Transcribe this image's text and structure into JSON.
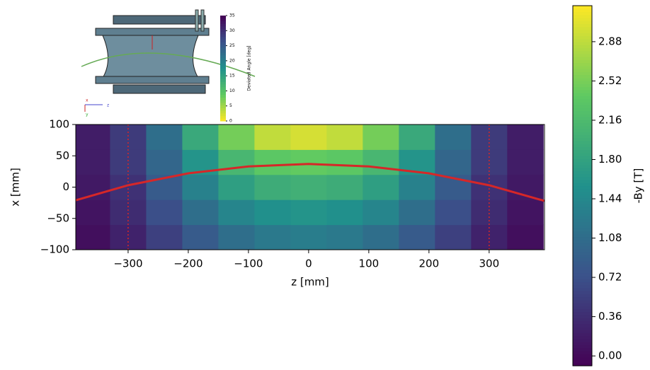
{
  "chart_data": {
    "type": "heatmap",
    "xlabel": "z [mm]",
    "ylabel": "x [mm]",
    "xlim": [
      -387,
      392
    ],
    "ylim": [
      -100,
      100
    ],
    "xticks": [
      {
        "value": -300,
        "label": "−300"
      },
      {
        "value": -200,
        "label": "−200"
      },
      {
        "value": -100,
        "label": "−100"
      },
      0,
      100,
      200,
      300
    ],
    "yticks": [
      {
        "value": -100,
        "label": "−100"
      },
      {
        "value": -50,
        "label": "−50"
      },
      0,
      50,
      100
    ],
    "xbins": [
      -390,
      -330,
      -270,
      -210,
      -150,
      -90,
      -30,
      30,
      90,
      150,
      210,
      270,
      330,
      390
    ],
    "ybins": [
      -100,
      -60,
      -20,
      20,
      60,
      100
    ],
    "values": [
      [
        0.05,
        0.25,
        0.55,
        0.85,
        1.1,
        1.25,
        1.3,
        1.25,
        1.1,
        0.85,
        0.55,
        0.25,
        0.05
      ],
      [
        0.1,
        0.35,
        0.7,
        1.1,
        1.4,
        1.55,
        1.6,
        1.55,
        1.4,
        1.1,
        0.7,
        0.35,
        0.1
      ],
      [
        0.15,
        0.4,
        0.85,
        1.35,
        1.75,
        1.95,
        2.0,
        1.95,
        1.75,
        1.35,
        0.85,
        0.4,
        0.15
      ],
      [
        0.2,
        0.5,
        1.0,
        1.6,
        2.1,
        2.35,
        2.4,
        2.35,
        2.1,
        1.6,
        1.0,
        0.5,
        0.2
      ],
      [
        0.2,
        0.5,
        1.1,
        1.9,
        2.5,
        2.9,
        3.0,
        2.9,
        2.5,
        1.9,
        1.1,
        0.5,
        0.2
      ]
    ],
    "trajectory": {
      "color": "#d62728",
      "x": [
        -387,
        -300,
        -200,
        -100,
        0,
        100,
        200,
        300,
        392
      ],
      "values": [
        -21,
        3,
        22,
        33,
        37,
        33,
        22,
        3,
        -22
      ]
    },
    "vlines": [
      -300,
      300
    ],
    "colorbar": {
      "label": "-By [T]",
      "lim": [
        -0.09,
        3.21
      ],
      "ticks": [
        {
          "value": 0,
          "label": "0.00"
        },
        0.36,
        0.72,
        1.08,
        1.44,
        {
          "value": 1.8,
          "label": "1.80"
        },
        2.16,
        2.52,
        2.88
      ]
    },
    "inset": {
      "colorbar_label": "Deviated Angle [deg]",
      "lim": [
        0,
        35
      ],
      "ticks": [
        0,
        5,
        10,
        15,
        20,
        25,
        30,
        35
      ],
      "axes": [
        "x",
        "y",
        "z"
      ]
    }
  }
}
